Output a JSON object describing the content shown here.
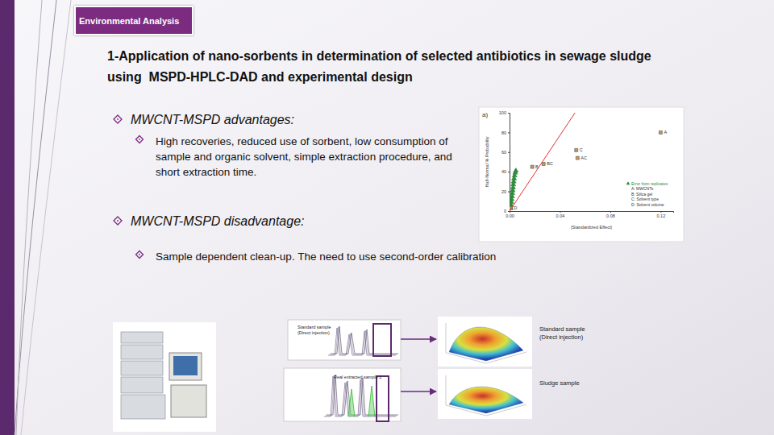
{
  "header": {
    "tag": "Environmental Analysis",
    "title": "1-Application of nano-sorbents in determination of selected antibiotics in sewage sludge using  MSPD-HPLC-DAD and experimental design"
  },
  "bullets": [
    {
      "text": "MWCNT-MSPD advantages:",
      "sub": [
        "High recoveries, reduced use of sorbent, low consumption of sample and organic solvent, simple extraction procedure, and short extraction time."
      ]
    },
    {
      "text": "MWCNT-MSPD disadvantage:",
      "sub": [
        "Sample dependent clean-up. The need to use second-order calibration"
      ]
    }
  ],
  "chart_data": {
    "type": "scatter",
    "panel_label": "a)",
    "x_label": "|Standardized Effect|",
    "y_label": "Half-Normal % Probability",
    "series": [
      {
        "name": "Error from replicates",
        "color": "#2e8b3a",
        "marker": "triangle",
        "x": [
          0.001,
          0.0012,
          0.0015,
          0.0017,
          0.002,
          0.0022,
          0.0025,
          0.0028,
          0.003,
          0.0033,
          0.0036,
          0.004,
          0.0045,
          0.005
        ],
        "values": [
          3,
          6,
          9,
          12,
          15,
          18,
          21,
          24,
          27,
          30,
          33,
          36,
          39,
          41
        ]
      },
      {
        "color": "#c49a5a",
        "marker": "square",
        "point_labels": [
          "A",
          "C",
          "AC",
          "BC",
          "B",
          "D"
        ],
        "x": [
          0.12,
          0.053,
          0.054,
          0.027,
          0.018,
          0.001
        ],
        "values": [
          80,
          62,
          54,
          48,
          45,
          3
        ]
      },
      {
        "type": "line",
        "color": "#e03030",
        "x": [
          0,
          0.052
        ],
        "values": [
          0,
          100
        ]
      }
    ],
    "factors": [
      "A: MWCNTs",
      "B: Silica gel",
      "C: Solvent type",
      "D: Solvent volume"
    ],
    "xlim": [
      0,
      0.13
    ],
    "xticks": [
      {
        "value": 0,
        "label": "0.00"
      },
      {
        "value": 0.04,
        "label": "0.04"
      },
      {
        "value": 0.08,
        "label": "0.08"
      },
      {
        "value": 0.12,
        "label": "0.12"
      }
    ],
    "ylim": [
      0,
      100
    ],
    "yticks": [
      0,
      20,
      40,
      60,
      80,
      100
    ],
    "legend": "bottom-right"
  },
  "diagram": {
    "chromatograms": [
      "Standard sample (Direct injection)",
      "Real extracted sample 2"
    ],
    "surfaces": [
      "Standard sample (Direct injection)",
      "Sludge sample"
    ]
  }
}
